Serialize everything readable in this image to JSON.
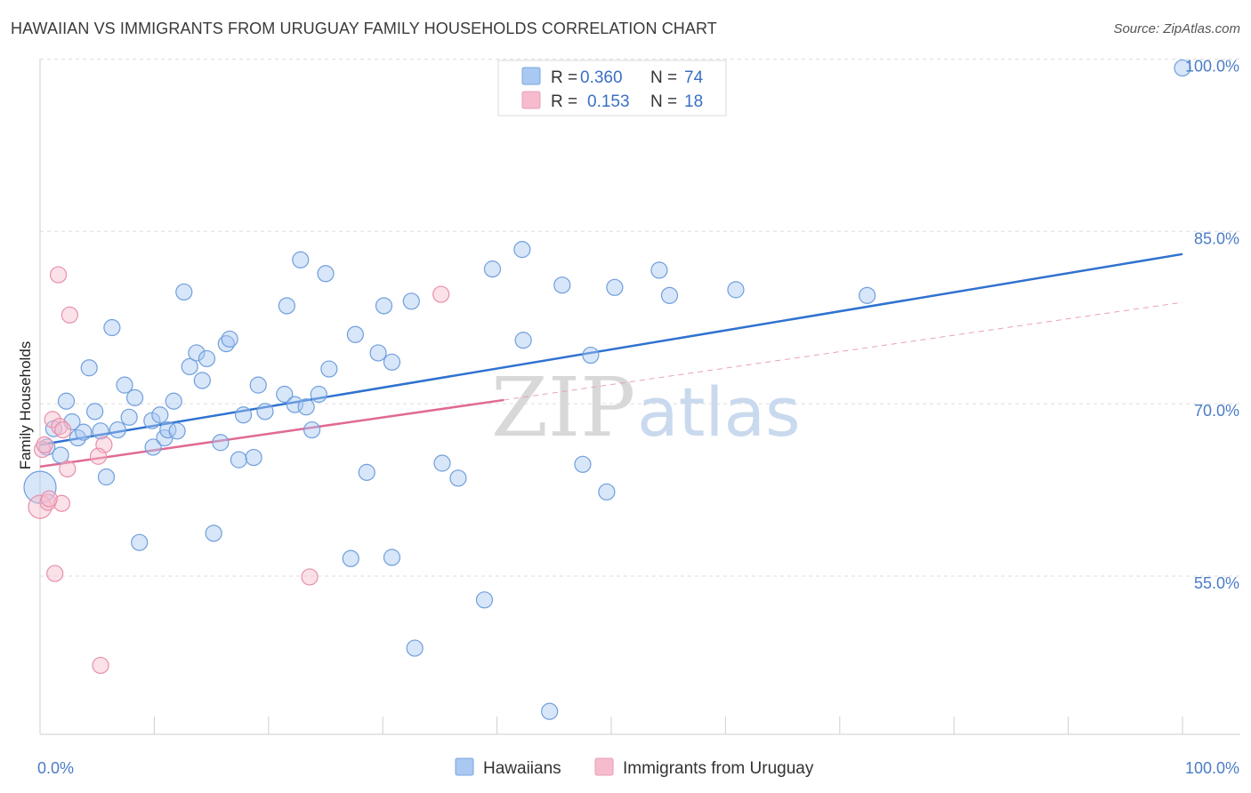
{
  "header": {
    "title": "HAWAIIAN VS IMMIGRANTS FROM URUGUAY FAMILY HOUSEHOLDS CORRELATION CHART",
    "source": "Source: ZipAtlas.com"
  },
  "watermark": {
    "zip": "ZIP",
    "atlas": "atlas"
  },
  "legend_box": {
    "rows": [
      {
        "r_label": "R =",
        "r_value": "0.360",
        "n_label": "N =",
        "n_value": "74",
        "color": "#a9c8f2"
      },
      {
        "r_label": "R =",
        "r_value": "0.153",
        "n_label": "N =",
        "n_value": "18",
        "color": "#f6bccd"
      }
    ]
  },
  "bottom_legend": [
    {
      "label": "Hawaiians",
      "color": "#a9c8f2"
    },
    {
      "label": "Immigrants from Uruguay",
      "color": "#f6bccd"
    }
  ],
  "chart_data": {
    "type": "scatter",
    "title": "HAWAIIAN VS IMMIGRANTS FROM URUGUAY FAMILY HOUSEHOLDS CORRELATION CHART",
    "xlabel": "",
    "ylabel": "Family Households",
    "xlim": [
      0,
      100
    ],
    "ylim": [
      42,
      100.5
    ],
    "x_tick_labels": [
      {
        "value": 0,
        "label": "0.0%"
      },
      {
        "value": 100,
        "label": "100.0%"
      }
    ],
    "y_tick_labels": [
      {
        "value": 55,
        "label": "55.0%"
      },
      {
        "value": 70,
        "label": "70.0%"
      },
      {
        "value": 85,
        "label": "85.0%"
      },
      {
        "value": 100,
        "label": "100.0%"
      }
    ],
    "grid": true,
    "series": [
      {
        "name": "Hawaiians",
        "color": "#a9c8f2",
        "stroke": "#6f9fdc",
        "trend": {
          "x": [
            0,
            100
          ],
          "y": [
            67.2,
            83.8
          ],
          "color": "#2f72d0",
          "dashed": false
        },
        "points": [
          [
            0.0,
            63.5
          ],
          [
            0.6,
            67.0
          ],
          [
            1.2,
            68.6
          ],
          [
            1.8,
            66.3
          ],
          [
            2.3,
            71.0
          ],
          [
            2.8,
            69.2
          ],
          [
            3.3,
            67.8
          ],
          [
            3.8,
            68.3
          ],
          [
            4.3,
            73.9
          ],
          [
            4.8,
            70.1
          ],
          [
            5.3,
            68.4
          ],
          [
            5.8,
            64.4
          ],
          [
            6.3,
            77.4
          ],
          [
            6.8,
            68.5
          ],
          [
            7.4,
            72.4
          ],
          [
            7.8,
            69.6
          ],
          [
            8.3,
            71.3
          ],
          [
            8.7,
            58.7
          ],
          [
            9.8,
            69.3
          ],
          [
            9.9,
            67.0
          ],
          [
            10.5,
            69.8
          ],
          [
            10.9,
            67.8
          ],
          [
            11.2,
            68.5
          ],
          [
            11.7,
            71.0
          ],
          [
            12.0,
            68.4
          ],
          [
            12.6,
            80.5
          ],
          [
            13.1,
            74.0
          ],
          [
            13.7,
            75.2
          ],
          [
            14.2,
            72.8
          ],
          [
            14.6,
            74.7
          ],
          [
            15.2,
            59.5
          ],
          [
            15.8,
            67.4
          ],
          [
            16.3,
            76.0
          ],
          [
            16.6,
            76.4
          ],
          [
            17.4,
            65.9
          ],
          [
            17.8,
            69.8
          ],
          [
            18.7,
            66.1
          ],
          [
            19.1,
            72.4
          ],
          [
            19.7,
            70.1
          ],
          [
            21.4,
            71.6
          ],
          [
            21.6,
            79.3
          ],
          [
            22.3,
            70.7
          ],
          [
            22.8,
            83.3
          ],
          [
            23.3,
            70.5
          ],
          [
            23.8,
            68.5
          ],
          [
            24.4,
            71.6
          ],
          [
            25.0,
            82.1
          ],
          [
            25.3,
            73.8
          ],
          [
            27.2,
            57.3
          ],
          [
            27.6,
            76.8
          ],
          [
            28.6,
            64.8
          ],
          [
            29.6,
            75.2
          ],
          [
            30.1,
            79.3
          ],
          [
            30.8,
            74.4
          ],
          [
            30.8,
            57.4
          ],
          [
            32.5,
            79.7
          ],
          [
            32.8,
            49.5
          ],
          [
            35.2,
            65.6
          ],
          [
            36.6,
            64.3
          ],
          [
            38.9,
            53.7
          ],
          [
            39.6,
            82.5
          ],
          [
            42.2,
            84.2
          ],
          [
            42.3,
            76.3
          ],
          [
            44.6,
            44.0
          ],
          [
            45.7,
            81.1
          ],
          [
            47.5,
            65.5
          ],
          [
            48.2,
            75.0
          ],
          [
            49.6,
            63.1
          ],
          [
            50.3,
            80.9
          ],
          [
            54.2,
            82.4
          ],
          [
            55.1,
            80.2
          ],
          [
            60.9,
            80.7
          ],
          [
            72.4,
            80.2
          ],
          [
            100.0,
            100.0
          ]
        ]
      },
      {
        "name": "Immigrants from Uruguay",
        "color": "#f6bccd",
        "stroke": "#e88fab",
        "trend": {
          "x": [
            0,
            40.6
          ],
          "y": [
            65.3,
            71.1
          ],
          "color": "#e06a92",
          "dashed": false
        },
        "trend_extension": {
          "x": [
            40.6,
            100
          ],
          "y": [
            71.1,
            79.6
          ],
          "color": "#e8a0b8",
          "dashed": true
        },
        "points": [
          [
            0.0,
            61.8
          ],
          [
            0.2,
            66.8
          ],
          [
            0.4,
            67.2
          ],
          [
            0.7,
            62.2
          ],
          [
            1.1,
            69.4
          ],
          [
            1.3,
            56.0
          ],
          [
            1.6,
            82.0
          ],
          [
            1.7,
            68.8
          ],
          [
            2.0,
            68.5
          ],
          [
            1.9,
            62.1
          ],
          [
            2.4,
            65.1
          ],
          [
            2.6,
            78.5
          ],
          [
            5.3,
            48.0
          ],
          [
            5.6,
            67.2
          ],
          [
            5.1,
            66.2
          ],
          [
            35.1,
            80.3
          ],
          [
            23.6,
            55.7
          ],
          [
            0.8,
            62.5
          ]
        ]
      }
    ]
  }
}
